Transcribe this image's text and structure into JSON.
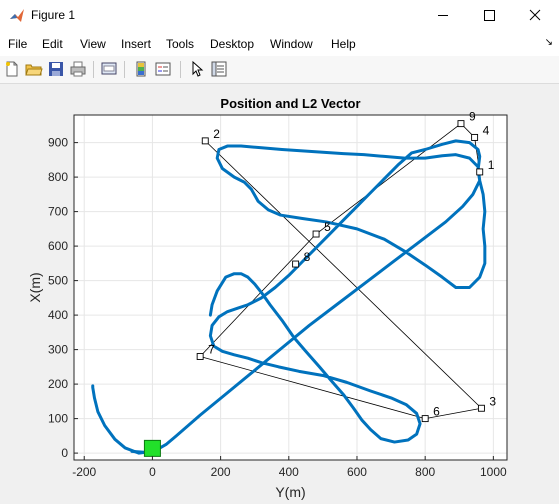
{
  "window": {
    "title": "Figure 1"
  },
  "menu": [
    "File",
    "Edit",
    "View",
    "Insert",
    "Tools",
    "Desktop",
    "Window",
    "Help"
  ],
  "toolbar": {
    "buttons": [
      "new-figure-icon",
      "open-file-icon",
      "save-icon",
      "print-icon",
      "print-preview-icon",
      "colorbar-icon",
      "legend-icon",
      "pointer-icon",
      "property-inspector-icon"
    ]
  },
  "colors": {
    "path": "#0072bd",
    "start_marker": "#22e02a",
    "grid": "#e6e6e6"
  },
  "chart_data": {
    "type": "line",
    "title": "Position and L2 Vector",
    "xlabel": "Y(m)",
    "ylabel": "X(m)",
    "xlim": [
      -230,
      1040
    ],
    "ylim": [
      -20,
      980
    ],
    "xticks": [
      -200,
      0,
      200,
      400,
      600,
      800,
      1000
    ],
    "yticks": [
      0,
      100,
      200,
      300,
      400,
      500,
      600,
      700,
      800,
      900
    ],
    "grid": true,
    "path": [
      [
        0,
        5
      ],
      [
        -40,
        0
      ],
      [
        -80,
        15
      ],
      [
        -110,
        40
      ],
      [
        -140,
        80
      ],
      [
        -160,
        120
      ],
      [
        -170,
        160
      ],
      [
        -175,
        190
      ],
      [
        -175,
        195
      ]
    ],
    "trajectory": [
      [
        -60,
        5
      ],
      [
        -20,
        2
      ],
      [
        10,
        8
      ],
      [
        40,
        25
      ],
      [
        70,
        50
      ],
      [
        140,
        110
      ],
      [
        220,
        175
      ],
      [
        300,
        240
      ],
      [
        380,
        305
      ],
      [
        460,
        370
      ],
      [
        540,
        430
      ],
      [
        620,
        490
      ],
      [
        700,
        550
      ],
      [
        780,
        610
      ],
      [
        860,
        670
      ],
      [
        910,
        715
      ],
      [
        940,
        750
      ],
      [
        960,
        790
      ],
      [
        955,
        830
      ],
      [
        930,
        855
      ],
      [
        890,
        865
      ],
      [
        850,
        862
      ],
      [
        800,
        855
      ],
      [
        740,
        855
      ],
      [
        680,
        860
      ],
      [
        620,
        865
      ],
      [
        560,
        868
      ],
      [
        500,
        872
      ],
      [
        440,
        876
      ],
      [
        380,
        880
      ],
      [
        320,
        885
      ],
      [
        260,
        890
      ],
      [
        220,
        890
      ],
      [
        195,
        880
      ],
      [
        190,
        855
      ],
      [
        205,
        825
      ],
      [
        240,
        800
      ],
      [
        270,
        785
      ],
      [
        290,
        765
      ],
      [
        310,
        730
      ],
      [
        340,
        705
      ],
      [
        375,
        690
      ],
      [
        440,
        680
      ],
      [
        510,
        670
      ],
      [
        600,
        650
      ],
      [
        680,
        620
      ],
      [
        740,
        585
      ],
      [
        800,
        545
      ],
      [
        850,
        510
      ],
      [
        890,
        480
      ],
      [
        930,
        480
      ],
      [
        960,
        510
      ],
      [
        975,
        550
      ],
      [
        975,
        600
      ],
      [
        970,
        650
      ],
      [
        975,
        700
      ],
      [
        970,
        750
      ],
      [
        960,
        790
      ],
      [
        955,
        820
      ],
      [
        960,
        860
      ],
      [
        955,
        880
      ],
      [
        930,
        900
      ],
      [
        890,
        905
      ],
      [
        850,
        895
      ],
      [
        800,
        880
      ],
      [
        760,
        870
      ],
      [
        720,
        835
      ],
      [
        680,
        795
      ],
      [
        640,
        755
      ],
      [
        600,
        715
      ],
      [
        560,
        675
      ],
      [
        520,
        635
      ],
      [
        480,
        595
      ],
      [
        440,
        555
      ],
      [
        400,
        515
      ],
      [
        360,
        480
      ],
      [
        320,
        450
      ],
      [
        280,
        430
      ],
      [
        250,
        420
      ],
      [
        220,
        410
      ],
      [
        195,
        395
      ],
      [
        175,
        370
      ],
      [
        170,
        340
      ],
      [
        180,
        310
      ],
      [
        205,
        295
      ],
      [
        240,
        285
      ],
      [
        280,
        275
      ],
      [
        320,
        262
      ],
      [
        370,
        250
      ],
      [
        430,
        237
      ],
      [
        500,
        225
      ],
      [
        570,
        205
      ],
      [
        640,
        180
      ],
      [
        700,
        160
      ],
      [
        745,
        140
      ],
      [
        775,
        115
      ],
      [
        785,
        85
      ],
      [
        775,
        55
      ],
      [
        750,
        38
      ],
      [
        710,
        32
      ],
      [
        670,
        42
      ],
      [
        640,
        68
      ],
      [
        615,
        95
      ],
      [
        590,
        130
      ],
      [
        560,
        170
      ],
      [
        520,
        215
      ],
      [
        490,
        250
      ],
      [
        450,
        295
      ],
      [
        415,
        335
      ],
      [
        380,
        385
      ],
      [
        345,
        430
      ],
      [
        320,
        465
      ],
      [
        300,
        490
      ],
      [
        280,
        510
      ],
      [
        260,
        520
      ],
      [
        240,
        520
      ],
      [
        215,
        510
      ],
      [
        190,
        470
      ],
      [
        175,
        430
      ],
      [
        170,
        400
      ]
    ],
    "waypoints": [
      {
        "label": "1",
        "x": 960,
        "y": 815
      },
      {
        "label": "2",
        "x": 155,
        "y": 905
      },
      {
        "label": "3",
        "x": 965,
        "y": 130
      },
      {
        "label": "4",
        "x": 945,
        "y": 915
      },
      {
        "label": "5",
        "x": 480,
        "y": 635
      },
      {
        "label": "6",
        "x": 800,
        "y": 100
      },
      {
        "label": "7",
        "x": 140,
        "y": 280
      },
      {
        "label": "8",
        "x": 420,
        "y": 548
      },
      {
        "label": "9",
        "x": 905,
        "y": 955
      }
    ],
    "start": {
      "x": 0,
      "y": 5
    }
  }
}
